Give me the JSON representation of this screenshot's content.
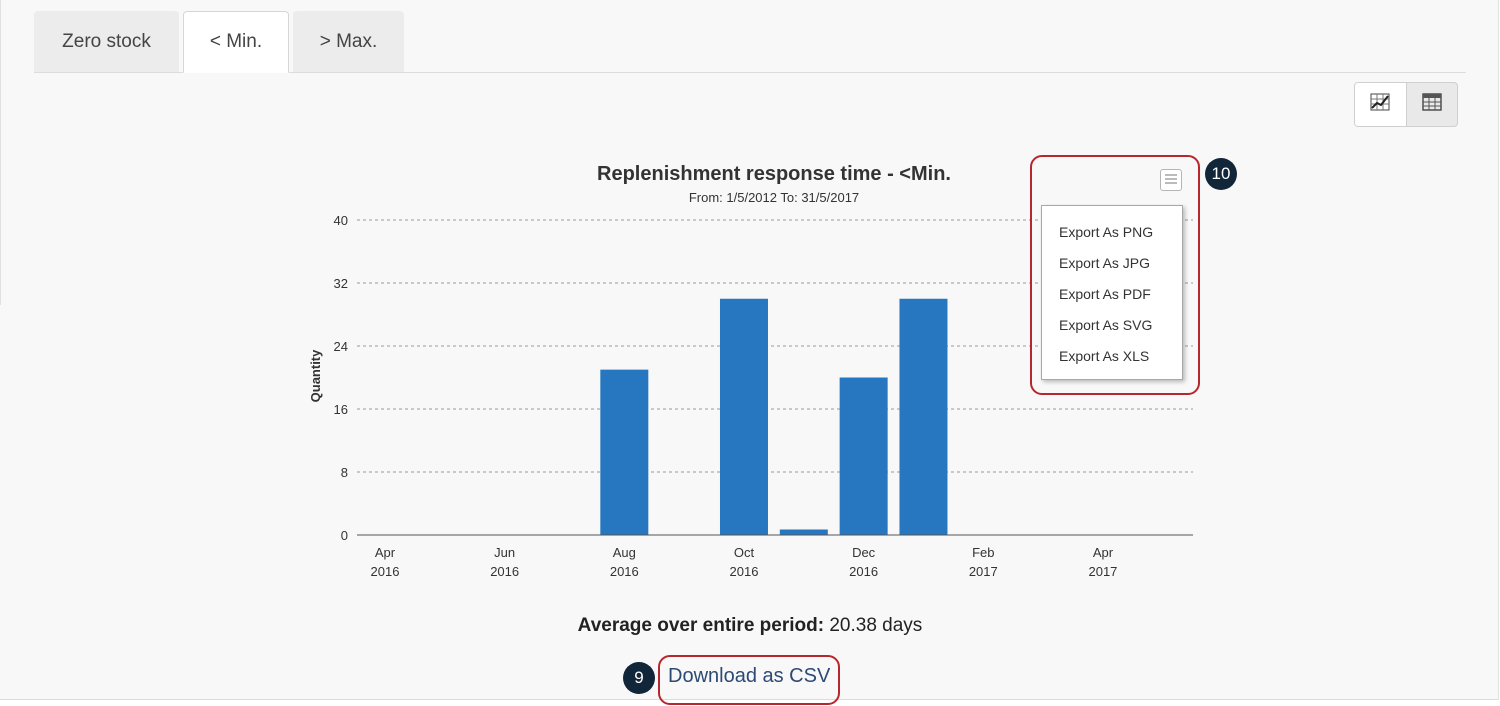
{
  "tabs": [
    {
      "label": "Zero stock",
      "active": false
    },
    {
      "label": "< Min.",
      "active": true
    },
    {
      "label": "> Max.",
      "active": false
    }
  ],
  "view_toggle": {
    "chart_icon": "chart-icon",
    "table_icon": "table-icon",
    "selected": "chart"
  },
  "chart_data": {
    "type": "bar",
    "title": "Replenishment response time - <Min.",
    "subtitle": "From: 1/5/2012 To: 31/5/2017",
    "ylabel": "Quantity",
    "ylim": [
      0,
      40
    ],
    "yticks": [
      "40",
      "32",
      "24",
      "16",
      "8",
      "0"
    ],
    "xticks": [
      {
        "month": "Apr",
        "year": "2016"
      },
      {
        "month": "Jun",
        "year": "2016"
      },
      {
        "month": "Aug",
        "year": "2016"
      },
      {
        "month": "Oct",
        "year": "2016"
      },
      {
        "month": "Dec",
        "year": "2016"
      },
      {
        "month": "Feb",
        "year": "2017"
      },
      {
        "month": "Apr",
        "year": "2017"
      }
    ],
    "categories": [
      "Apr 2016",
      "May 2016",
      "Jun 2016",
      "Jul 2016",
      "Aug 2016",
      "Sep 2016",
      "Oct 2016",
      "Nov 2016",
      "Dec 2016",
      "Jan 2017",
      "Feb 2017",
      "Mar 2017",
      "Apr 2017"
    ],
    "values": [
      0,
      0,
      0,
      0,
      21,
      0,
      30,
      0.7,
      20,
      30,
      0,
      0,
      0
    ],
    "bar_color": "#2677c0",
    "grid": "dashed horizontal",
    "legend": "none"
  },
  "export_menu": {
    "trigger_icon": "menu-icon",
    "items": [
      "Export As PNG",
      "Export As JPG",
      "Export As PDF",
      "Export As SVG",
      "Export As XLS"
    ]
  },
  "average": {
    "label": "Average over entire period:",
    "value": "20.38 days"
  },
  "download_link": "Download as CSV",
  "callouts": {
    "export": "10",
    "download": "9",
    "color": "#b5272d"
  }
}
